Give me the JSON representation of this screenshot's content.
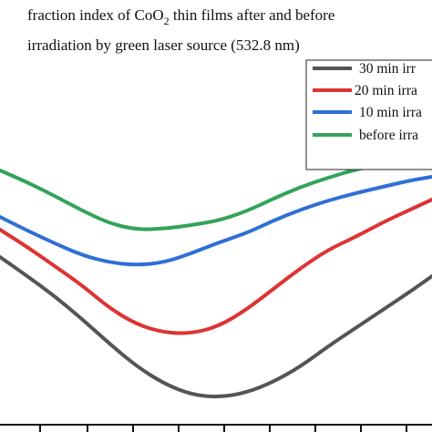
{
  "chart_data": {
    "type": "line",
    "title_line1_pre": "fraction index of CoO",
    "title_line1_sub": "2",
    "title_line1_post": " thin films after and before",
    "title_line2": "irradiation by green laser source (532.8 nm)",
    "xlabel": "",
    "ylabel": "",
    "legend_position": "top-right",
    "grid": false,
    "series": [
      {
        "name": "30 min irr",
        "color": "#555555",
        "points": [
          [
            0,
            282
          ],
          [
            30,
            303
          ],
          [
            60,
            325
          ],
          [
            90,
            350
          ],
          [
            120,
            377
          ],
          [
            150,
            402
          ],
          [
            180,
            421
          ],
          [
            210,
            433
          ],
          [
            240,
            436
          ],
          [
            270,
            431
          ],
          [
            300,
            419
          ],
          [
            330,
            402
          ],
          [
            360,
            380
          ],
          [
            390,
            360
          ],
          [
            420,
            340
          ],
          [
            450,
            320
          ],
          [
            474,
            303
          ]
        ]
      },
      {
        "name": "20 min irra",
        "color": "#dd3333",
        "points": [
          [
            0,
            252
          ],
          [
            30,
            271
          ],
          [
            60,
            292
          ],
          [
            90,
            313
          ],
          [
            120,
            338
          ],
          [
            150,
            356
          ],
          [
            180,
            365
          ],
          [
            210,
            366
          ],
          [
            240,
            358
          ],
          [
            270,
            340
          ],
          [
            300,
            317
          ],
          [
            330,
            294
          ],
          [
            360,
            274
          ],
          [
            390,
            260
          ],
          [
            420,
            244
          ],
          [
            450,
            230
          ],
          [
            474,
            219
          ]
        ]
      },
      {
        "name": "10 min irra",
        "color": "#2f6fd6",
        "points": [
          [
            0,
            238
          ],
          [
            30,
            253
          ],
          [
            60,
            267
          ],
          [
            90,
            280
          ],
          [
            120,
            288
          ],
          [
            150,
            291
          ],
          [
            180,
            288
          ],
          [
            210,
            278
          ],
          [
            240,
            266
          ],
          [
            270,
            256
          ],
          [
            300,
            242
          ],
          [
            330,
            230
          ],
          [
            360,
            220
          ],
          [
            390,
            212
          ],
          [
            420,
            205
          ],
          [
            450,
            198
          ],
          [
            474,
            194
          ]
        ]
      },
      {
        "name": "before irra",
        "color": "#33a35a",
        "points": [
          [
            0,
            187
          ],
          [
            30,
            200
          ],
          [
            60,
            215
          ],
          [
            90,
            231
          ],
          [
            120,
            245
          ],
          [
            150,
            252
          ],
          [
            180,
            251
          ],
          [
            210,
            247
          ],
          [
            240,
            242
          ],
          [
            270,
            232
          ],
          [
            300,
            218
          ],
          [
            330,
            205
          ],
          [
            360,
            195
          ],
          [
            390,
            186
          ],
          [
            420,
            180
          ],
          [
            450,
            174
          ],
          [
            474,
            170
          ]
        ]
      }
    ]
  }
}
